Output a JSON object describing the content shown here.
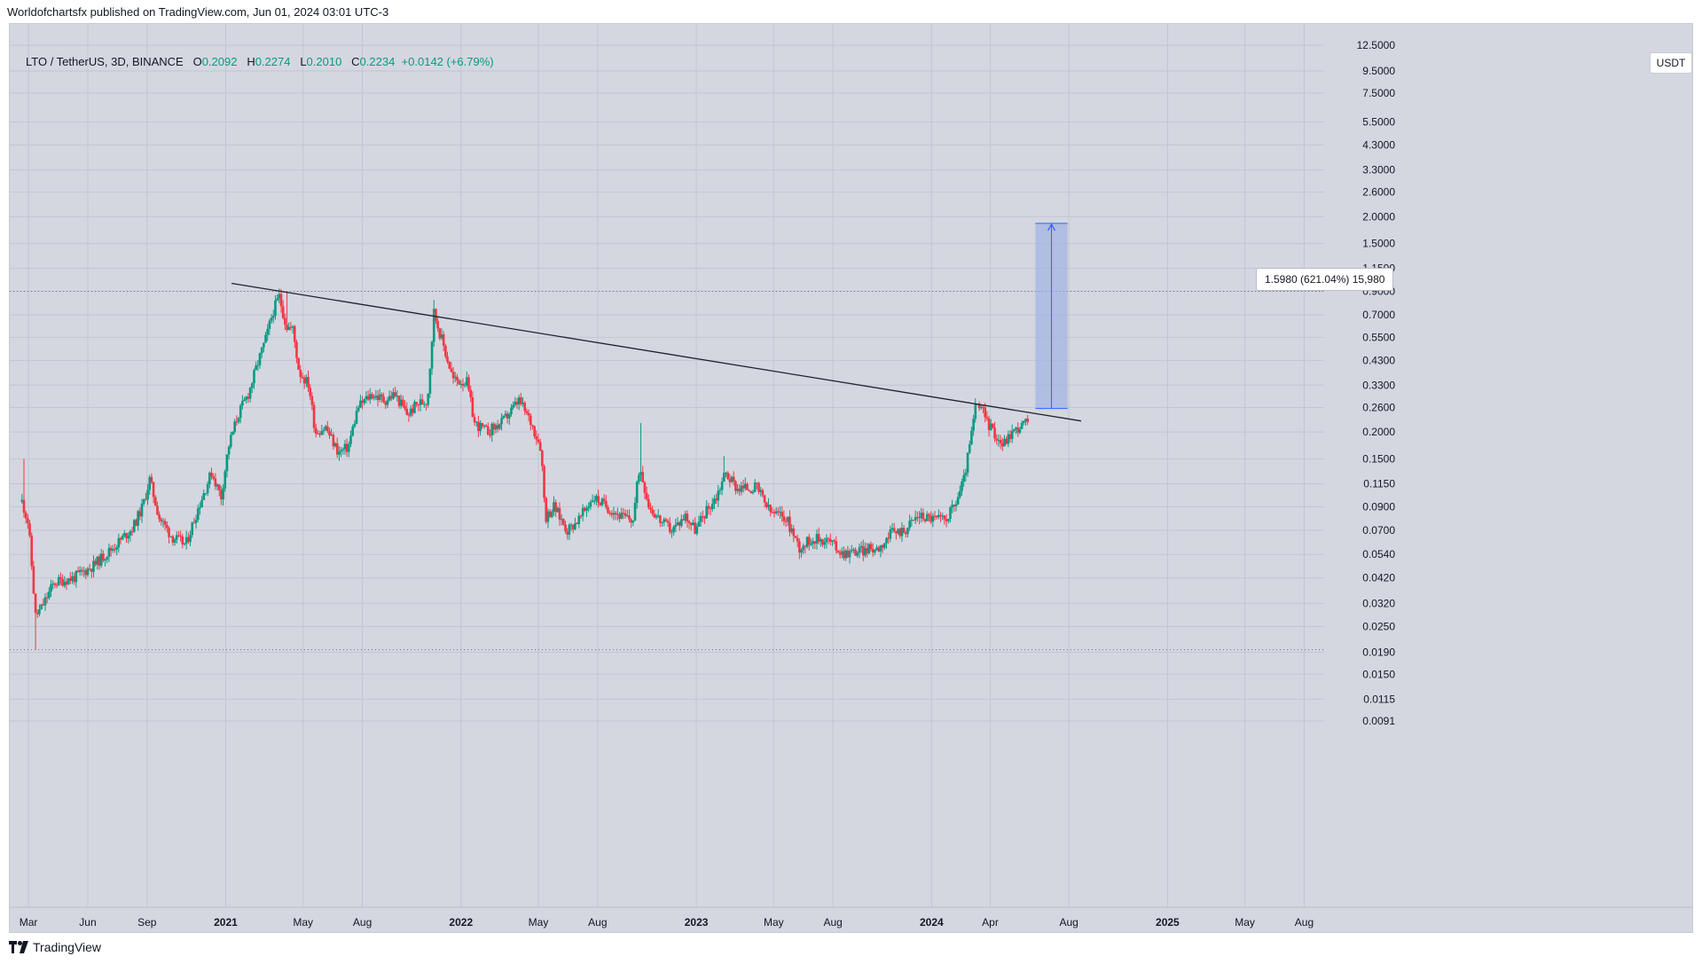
{
  "header": {
    "published_text": "Worldofchartsfx published on TradingView.com, Jun 01, 2024 03:01 UTC-3"
  },
  "legend": {
    "symbol": "LTO / TetherUS, 3D, BINANCE",
    "o_label": "O",
    "o_value": "0.2092",
    "h_label": "H",
    "h_value": "0.2274",
    "l_label": "L",
    "l_value": "0.2010",
    "c_label": "C",
    "c_value": "0.2234",
    "change": "+0.0142 (+6.79%)"
  },
  "currency": "USDT",
  "measure_label": "1.5980 (621.04%) 15,980",
  "footer": {
    "brand": "TradingView"
  },
  "colors": {
    "background": "#d4d7e0",
    "grid": "#c2c6d0",
    "up": "#089981",
    "down": "#f23645",
    "trendline": "#1e222d",
    "measure_fill": "#9db1e6",
    "measure_stroke": "#2962ff"
  },
  "chart_data": {
    "type": "candlestick",
    "symbol": "LTO / TetherUS",
    "interval": "3D",
    "exchange": "BINANCE",
    "y_scale": "log",
    "y_ticks": [
      "12.5000",
      "9.5000",
      "7.5000",
      "5.5000",
      "4.3000",
      "3.3000",
      "2.6000",
      "2.0000",
      "1.5000",
      "1.1500",
      "0.9000",
      "0.7000",
      "0.5500",
      "0.4300",
      "0.3300",
      "0.2600",
      "0.2000",
      "0.1500",
      "0.1150",
      "0.0900",
      "0.0700",
      "0.0540",
      "0.0420",
      "0.0320",
      "0.0250",
      "0.0190",
      "0.0150",
      "0.0115",
      "0.0091"
    ],
    "x_ticks": [
      "Mar",
      "Jun",
      "Sep",
      "2021",
      "May",
      "Aug",
      "2022",
      "May",
      "Aug",
      "2023",
      "May",
      "Aug",
      "2024",
      "Apr",
      "Aug",
      "2025",
      "May",
      "Aug"
    ],
    "horizontal_lines": [
      0.9,
      0.0195
    ],
    "close_path": [
      [
        "2020-02-20",
        0.095
      ],
      [
        "2020-03-01",
        0.075
      ],
      [
        "2020-03-12",
        0.028
      ],
      [
        "2020-03-20",
        0.03
      ],
      [
        "2020-04-10",
        0.04
      ],
      [
        "2020-05-10",
        0.042
      ],
      [
        "2020-06-10",
        0.048
      ],
      [
        "2020-07-10",
        0.058
      ],
      [
        "2020-08-10",
        0.072
      ],
      [
        "2020-08-25",
        0.09
      ],
      [
        "2020-09-05",
        0.12
      ],
      [
        "2020-09-20",
        0.08
      ],
      [
        "2020-10-10",
        0.065
      ],
      [
        "2020-10-31",
        0.06
      ],
      [
        "2020-11-20",
        0.09
      ],
      [
        "2020-12-10",
        0.13
      ],
      [
        "2020-12-25",
        0.1
      ],
      [
        "2021-01-05",
        0.17
      ],
      [
        "2021-01-20",
        0.24
      ],
      [
        "2021-02-05",
        0.3
      ],
      [
        "2021-02-20",
        0.42
      ],
      [
        "2021-03-05",
        0.55
      ],
      [
        "2021-03-15",
        0.72
      ],
      [
        "2021-03-25",
        0.85
      ],
      [
        "2021-04-05",
        0.62
      ],
      [
        "2021-04-15",
        0.6
      ],
      [
        "2021-04-25",
        0.38
      ],
      [
        "2021-05-10",
        0.33
      ],
      [
        "2021-05-20",
        0.2
      ],
      [
        "2021-06-05",
        0.21
      ],
      [
        "2021-06-25",
        0.16
      ],
      [
        "2021-07-10",
        0.17
      ],
      [
        "2021-07-25",
        0.26
      ],
      [
        "2021-08-15",
        0.3
      ],
      [
        "2021-09-05",
        0.28
      ],
      [
        "2021-09-20",
        0.3
      ],
      [
        "2021-10-10",
        0.24
      ],
      [
        "2021-10-25",
        0.27
      ],
      [
        "2021-11-10",
        0.28
      ],
      [
        "2021-11-20",
        0.72
      ],
      [
        "2021-12-05",
        0.5
      ],
      [
        "2021-12-20",
        0.35
      ],
      [
        "2022-01-10",
        0.34
      ],
      [
        "2022-01-22",
        0.22
      ],
      [
        "2022-02-10",
        0.2
      ],
      [
        "2022-03-05",
        0.22
      ],
      [
        "2022-04-01",
        0.28
      ],
      [
        "2022-04-20",
        0.22
      ],
      [
        "2022-05-05",
        0.17
      ],
      [
        "2022-05-12",
        0.08
      ],
      [
        "2022-05-25",
        0.09
      ],
      [
        "2022-06-15",
        0.07
      ],
      [
        "2022-07-05",
        0.08
      ],
      [
        "2022-07-25",
        0.1
      ],
      [
        "2022-08-15",
        0.09
      ],
      [
        "2022-09-10",
        0.08
      ],
      [
        "2022-09-25",
        0.078
      ],
      [
        "2022-10-05",
        0.14
      ],
      [
        "2022-10-20",
        0.09
      ],
      [
        "2022-11-10",
        0.075
      ],
      [
        "2022-11-25",
        0.07
      ],
      [
        "2022-12-15",
        0.082
      ],
      [
        "2022-12-31",
        0.07
      ],
      [
        "2023-01-15",
        0.085
      ],
      [
        "2023-02-01",
        0.1
      ],
      [
        "2023-02-15",
        0.13
      ],
      [
        "2023-03-05",
        0.11
      ],
      [
        "2023-04-05",
        0.11
      ],
      [
        "2023-04-25",
        0.085
      ],
      [
        "2023-05-20",
        0.08
      ],
      [
        "2023-06-10",
        0.058
      ],
      [
        "2023-06-30",
        0.064
      ],
      [
        "2023-07-25",
        0.063
      ],
      [
        "2023-08-15",
        0.055
      ],
      [
        "2023-09-10",
        0.056
      ],
      [
        "2023-10-10",
        0.058
      ],
      [
        "2023-11-01",
        0.068
      ],
      [
        "2023-11-20",
        0.07
      ],
      [
        "2023-12-10",
        0.082
      ],
      [
        "2024-01-01",
        0.08
      ],
      [
        "2024-01-20",
        0.078
      ],
      [
        "2024-02-05",
        0.09
      ],
      [
        "2024-02-20",
        0.12
      ],
      [
        "2024-03-01",
        0.18
      ],
      [
        "2024-03-10",
        0.27
      ],
      [
        "2024-03-20",
        0.25
      ],
      [
        "2024-04-01",
        0.21
      ],
      [
        "2024-04-20",
        0.175
      ],
      [
        "2024-05-05",
        0.2
      ],
      [
        "2024-05-20",
        0.215
      ],
      [
        "2024-05-29",
        0.2234
      ]
    ],
    "wick_extremes": [
      [
        "2020-02-22",
        0.15
      ],
      [
        "2020-03-13",
        0.0195
      ],
      [
        "2021-04-05",
        0.9
      ],
      [
        "2021-11-20",
        0.82
      ],
      [
        "2022-10-07",
        0.22
      ],
      [
        "2023-02-12",
        0.155
      ]
    ],
    "trendline": {
      "start": [
        "2021-01-10",
        0.98
      ],
      "end": [
        "2024-08-20",
        0.225
      ]
    },
    "measure_box": {
      "x_start": "2024-06-10",
      "x_end": "2024-07-30",
      "y_low": 0.257,
      "y_high": 1.86
    },
    "measure_label": "1.5980 (621.04%) 15,980"
  }
}
